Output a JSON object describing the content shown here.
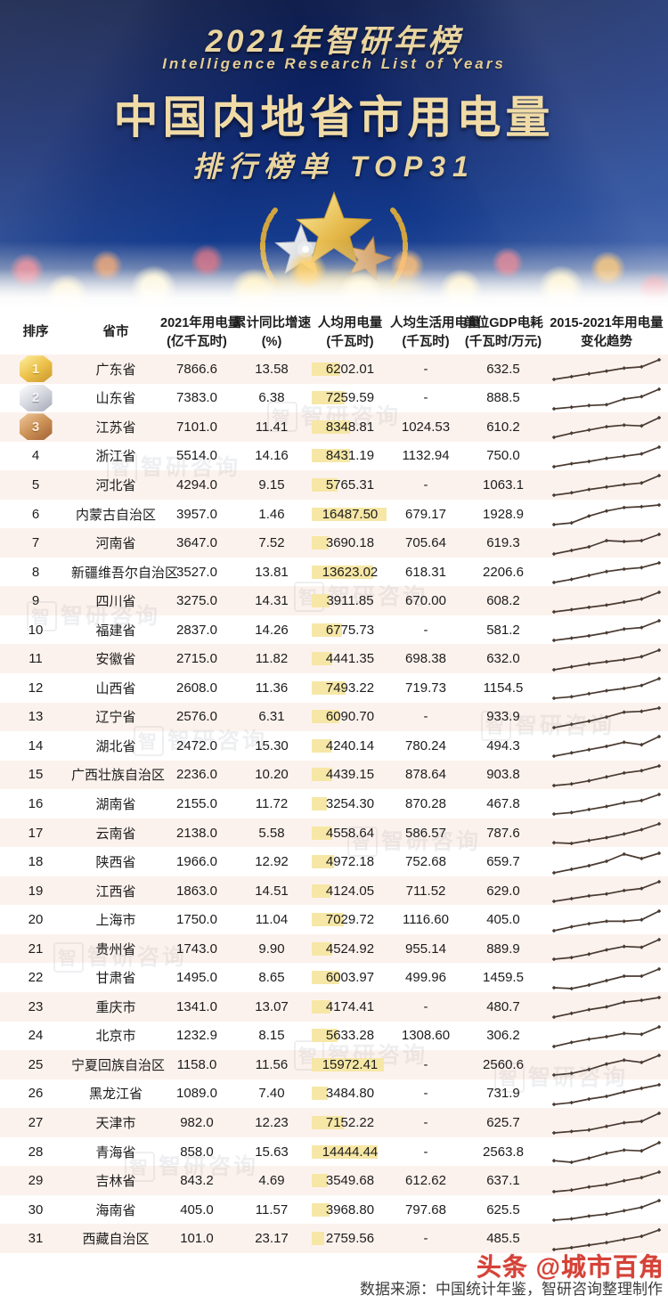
{
  "banner": {
    "title_line1": "2021年智研年榜",
    "title_line2": "Intelligence Research List of Years",
    "title_main": "中国内地省市用电量",
    "title_sub": "排行榜单  TOP31"
  },
  "brand_watermark": "智研咨询",
  "brand_watermark_logo": "智",
  "footer": {
    "source": "数据来源：中国统计年鉴，智研咨询整理制作",
    "red_watermark": "头条 @城市百角"
  },
  "chart_data": {
    "type": "table",
    "title": "2021年智研年榜 中国内地省市用电量 排行榜单 TOP31",
    "sparkline_note": "trend column shows 2015-2021 electricity usage trend, 7 points per province, values are relative units read from the sparklines",
    "per_capita_axis_max": 16500,
    "columns": [
      {
        "line1": "排序",
        "line2": ""
      },
      {
        "line1": "省市",
        "line2": ""
      },
      {
        "line1": "2021年用电量",
        "line2": "(亿千瓦时)"
      },
      {
        "line1": "累计同比增速",
        "line2": "(%)"
      },
      {
        "line1": "人均用电量",
        "line2": "(千瓦时)"
      },
      {
        "line1": "人均生活用电量",
        "line2": "(千瓦时)"
      },
      {
        "line1": "单位GDP电耗",
        "line2": "(千瓦时/万元)"
      },
      {
        "line1": "2015-2021年用电量",
        "line2": "变化趋势"
      }
    ],
    "rows": [
      {
        "rank": 1,
        "province": "广东省",
        "usage": "7866.6",
        "growth": "13.58",
        "per_capita": "6202.01",
        "per_capita_life": "-",
        "gdp_intensity": "632.5",
        "trend": [
          3,
          5,
          7,
          9,
          11,
          12,
          17
        ]
      },
      {
        "rank": 2,
        "province": "山东省",
        "usage": "7383.0",
        "growth": "6.38",
        "per_capita": "7259.59",
        "per_capita_life": "-",
        "gdp_intensity": "888.5",
        "trend": [
          3,
          4,
          5,
          5.5,
          9,
          10.5,
          15
        ]
      },
      {
        "rank": 3,
        "province": "江苏省",
        "usage": "7101.0",
        "growth": "11.41",
        "per_capita": "8348.81",
        "per_capita_life": "1024.53",
        "gdp_intensity": "610.2",
        "trend": [
          3,
          5.5,
          7.5,
          9.5,
          10.5,
          10,
          15
        ]
      },
      {
        "rank": 4,
        "province": "浙江省",
        "usage": "5514.0",
        "growth": "14.16",
        "per_capita": "8431.19",
        "per_capita_life": "1132.94",
        "gdp_intensity": "750.0",
        "trend": [
          3,
          5,
          6.5,
          8.5,
          10,
          11.5,
          16
        ]
      },
      {
        "rank": 5,
        "province": "河北省",
        "usage": "4294.0",
        "growth": "9.15",
        "per_capita": "5765.31",
        "per_capita_life": "-",
        "gdp_intensity": "1063.1",
        "trend": [
          3,
          4.5,
          6.5,
          8,
          9.5,
          10.5,
          15
        ]
      },
      {
        "rank": 6,
        "province": "内蒙古自治区",
        "usage": "3957.0",
        "growth": "1.46",
        "per_capita": "16487.50",
        "per_capita_life": "679.17",
        "gdp_intensity": "1928.9",
        "trend": [
          3,
          4,
          8,
          11,
          13,
          13.5,
          14.5
        ]
      },
      {
        "rank": 7,
        "province": "河南省",
        "usage": "3647.0",
        "growth": "7.52",
        "per_capita": "3690.18",
        "per_capita_life": "705.64",
        "gdp_intensity": "619.3",
        "trend": [
          3,
          5,
          7,
          10.5,
          10,
          10.5,
          14
        ]
      },
      {
        "rank": 8,
        "province": "新疆维吾尔自治区",
        "usage": "3527.0",
        "growth": "13.81",
        "per_capita": "13623.02",
        "per_capita_life": "618.31",
        "gdp_intensity": "2206.6",
        "trend": [
          2.5,
          4.5,
          7,
          9.5,
          11,
          12,
          15
        ]
      },
      {
        "rank": 9,
        "province": "四川省",
        "usage": "3275.0",
        "growth": "14.31",
        "per_capita": "3911.85",
        "per_capita_life": "670.00",
        "gdp_intensity": "608.2",
        "trend": [
          3,
          4.5,
          6,
          7.5,
          9.5,
          11.5,
          16
        ]
      },
      {
        "rank": 10,
        "province": "福建省",
        "usage": "2837.0",
        "growth": "14.26",
        "per_capita": "6775.73",
        "per_capita_life": "-",
        "gdp_intensity": "581.2",
        "trend": [
          3,
          4.5,
          6,
          8,
          10.5,
          11.5,
          16
        ]
      },
      {
        "rank": 11,
        "province": "安徽省",
        "usage": "2715.0",
        "growth": "11.82",
        "per_capita": "4441.35",
        "per_capita_life": "698.38",
        "gdp_intensity": "632.0",
        "trend": [
          2.5,
          4.5,
          6.5,
          8,
          9.5,
          11.5,
          16
        ]
      },
      {
        "rank": 12,
        "province": "山西省",
        "usage": "2608.0",
        "growth": "11.36",
        "per_capita": "7493.22",
        "per_capita_life": "719.73",
        "gdp_intensity": "1154.5",
        "trend": [
          3,
          4,
          6,
          8,
          9.5,
          11.5,
          16
        ]
      },
      {
        "rank": 13,
        "province": "辽宁省",
        "usage": "2576.0",
        "growth": "6.31",
        "per_capita": "6090.70",
        "per_capita_life": "-",
        "gdp_intensity": "933.9",
        "trend": [
          2.5,
          4.5,
          6.5,
          9,
          12,
          12.5,
          14.5
        ]
      },
      {
        "rank": 14,
        "province": "湖北省",
        "usage": "2472.0",
        "growth": "15.30",
        "per_capita": "4240.14",
        "per_capita_life": "780.24",
        "gdp_intensity": "494.3",
        "trend": [
          3,
          5,
          7,
          9,
          11.5,
          10,
          15
        ]
      },
      {
        "rank": 15,
        "province": "广西壮族自治区",
        "usage": "2236.0",
        "growth": "10.20",
        "per_capita": "4439.15",
        "per_capita_life": "878.64",
        "gdp_intensity": "903.8",
        "trend": [
          2.5,
          3.5,
          5.5,
          8,
          10.5,
          12,
          15
        ]
      },
      {
        "rank": 16,
        "province": "湖南省",
        "usage": "2155.0",
        "growth": "11.72",
        "per_capita": "3254.30",
        "per_capita_life": "870.28",
        "gdp_intensity": "467.8",
        "trend": [
          2.5,
          3.5,
          5.5,
          7.5,
          10,
          11.5,
          15.5
        ]
      },
      {
        "rank": 17,
        "province": "云南省",
        "usage": "2138.0",
        "growth": "5.58",
        "per_capita": "4558.64",
        "per_capita_life": "586.57",
        "gdp_intensity": "787.6",
        "trend": [
          3,
          2.5,
          4.5,
          6.5,
          9,
          12,
          16
        ]
      },
      {
        "rank": 18,
        "province": "陕西省",
        "usage": "1966.0",
        "growth": "12.92",
        "per_capita": "4972.18",
        "per_capita_life": "752.68",
        "gdp_intensity": "659.7",
        "trend": [
          2.5,
          4.5,
          6.5,
          9,
          13,
          10.5,
          13.5
        ]
      },
      {
        "rank": 19,
        "province": "江西省",
        "usage": "1863.0",
        "growth": "14.51",
        "per_capita": "4124.05",
        "per_capita_life": "711.52",
        "gdp_intensity": "629.0",
        "trend": [
          2.5,
          4.5,
          6.5,
          8,
          10.5,
          12,
          17
        ]
      },
      {
        "rank": 20,
        "province": "上海市",
        "usage": "1750.0",
        "growth": "11.04",
        "per_capita": "7029.72",
        "per_capita_life": "1116.60",
        "gdp_intensity": "405.0",
        "trend": [
          2.5,
          5,
          7,
          8.5,
          8.5,
          9.5,
          15
        ]
      },
      {
        "rank": 21,
        "province": "贵州省",
        "usage": "1743.0",
        "growth": "9.90",
        "per_capita": "4524.92",
        "per_capita_life": "955.14",
        "gdp_intensity": "889.9",
        "trend": [
          3,
          4,
          6,
          8.5,
          10.5,
          10,
          14.5
        ]
      },
      {
        "rank": 22,
        "province": "甘肃省",
        "usage": "1495.0",
        "growth": "8.65",
        "per_capita": "6003.97",
        "per_capita_life": "499.96",
        "gdp_intensity": "1459.5",
        "trend": [
          3,
          2.5,
          4.5,
          7,
          9.5,
          9.5,
          13.5
        ]
      },
      {
        "rank": 23,
        "province": "重庆市",
        "usage": "1341.0",
        "growth": "13.07",
        "per_capita": "4174.41",
        "per_capita_life": "-",
        "gdp_intensity": "480.7",
        "trend": [
          2.5,
          4.5,
          6.5,
          8,
          10.5,
          11.5,
          13
        ]
      },
      {
        "rank": 24,
        "province": "北京市",
        "usage": "1232.9",
        "growth": "8.15",
        "per_capita": "5633.28",
        "per_capita_life": "1308.60",
        "gdp_intensity": "306.2",
        "trend": [
          2.5,
          5,
          7,
          8.5,
          10.5,
          10,
          14.5
        ]
      },
      {
        "rank": 25,
        "province": "宁夏回族自治区",
        "usage": "1158.0",
        "growth": "11.56",
        "per_capita": "15972.41",
        "per_capita_life": "-",
        "gdp_intensity": "2560.6",
        "trend": [
          2.5,
          3.5,
          6,
          9.5,
          12,
          10.5,
          15
        ]
      },
      {
        "rank": 26,
        "province": "黑龙江省",
        "usage": "1089.0",
        "growth": "7.40",
        "per_capita": "3484.80",
        "per_capita_life": "-",
        "gdp_intensity": "731.9",
        "trend": [
          2.5,
          3.5,
          5.5,
          7,
          9.5,
          11.5,
          13.5
        ]
      },
      {
        "rank": 27,
        "province": "天津市",
        "usage": "982.0",
        "growth": "12.23",
        "per_capita": "7152.22",
        "per_capita_life": "-",
        "gdp_intensity": "625.7",
        "trend": [
          2.5,
          3.5,
          4.5,
          7,
          9.5,
          10.5,
          16
        ]
      },
      {
        "rank": 28,
        "province": "青海省",
        "usage": "858.0",
        "growth": "15.63",
        "per_capita": "14444.44",
        "per_capita_life": "-",
        "gdp_intensity": "2563.8",
        "trend": [
          4,
          3,
          5.5,
          8.5,
          10.5,
          10,
          15
        ]
      },
      {
        "rank": 29,
        "province": "吉林省",
        "usage": "843.2",
        "growth": "4.69",
        "per_capita": "3549.68",
        "per_capita_life": "612.62",
        "gdp_intensity": "637.1",
        "trend": [
          2.5,
          3.5,
          5.5,
          7,
          9.5,
          11.5,
          15
        ]
      },
      {
        "rank": 30,
        "province": "海南省",
        "usage": "405.0",
        "growth": "11.57",
        "per_capita": "3968.80",
        "per_capita_life": "797.68",
        "gdp_intensity": "625.5",
        "trend": [
          2.5,
          3.5,
          5.5,
          7,
          9.5,
          12,
          17
        ]
      },
      {
        "rank": 31,
        "province": "西藏自治区",
        "usage": "101.0",
        "growth": "23.17",
        "per_capita": "2759.56",
        "per_capita_life": "-",
        "gdp_intensity": "485.5",
        "trend": [
          2,
          3.5,
          5.5,
          7.5,
          10,
          12.5,
          17.5
        ]
      }
    ]
  },
  "colors": {
    "banner_navy": "#0d2468",
    "title_gold": "#ead5a0",
    "row_stripe": "#fcf2ed",
    "per_capita_bar": "#f6e7a6",
    "sparkline": "#493a31",
    "red_watermark": "#d0281c"
  }
}
